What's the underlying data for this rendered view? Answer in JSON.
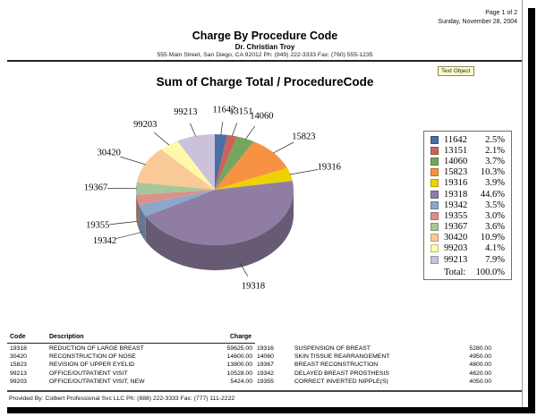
{
  "header": {
    "page_number": "Page 1 of 2",
    "date": "Sunday, November 28, 2004",
    "report_title": "Charge By Procedure Code",
    "provider_name": "Dr. Christian Troy",
    "address": "555 Main Street, San Diego, CA 92012 Ph: (949) 222-3333 Fax: (760) 555-1235"
  },
  "chart": {
    "text_object_label": "Text Object",
    "text_object_bg": "#FFFFCC"
  },
  "chart_data": {
    "type": "pie",
    "style": "3d",
    "title": "Sum of Charge Total / ProcedureCode",
    "start_angle_deg": -90,
    "clockwise": true,
    "legend_position": "right",
    "categories": [
      "11642",
      "13151",
      "14060",
      "15823",
      "19316",
      "19318",
      "19342",
      "19355",
      "19367",
      "30420",
      "99203",
      "99213"
    ],
    "values_percent": [
      2.5,
      2.1,
      3.7,
      10.3,
      3.9,
      44.6,
      3.5,
      3.0,
      3.6,
      10.9,
      4.1,
      7.9
    ],
    "colors": [
      "#4A6FA5",
      "#C9645C",
      "#74A65F",
      "#F79242",
      "#EDD202",
      "#8F7DA3",
      "#8CA7CC",
      "#DB9189",
      "#A6C79A",
      "#FAC998",
      "#FEF9A9",
      "#CBC1DB"
    ],
    "legend": {
      "total_label": "Total:",
      "total_value": "100.0%"
    }
  },
  "table": {
    "headers": [
      "Code",
      "Description",
      "Charge"
    ],
    "left_rows": [
      [
        "19318",
        "REDUCTION OF LARGE BREAST",
        "59625.00"
      ],
      [
        "30420",
        "RECONSTRUCTION OF NOSE",
        "14600.00"
      ],
      [
        "15823",
        "REVISION OF UPPER EYELID",
        "13800.00"
      ],
      [
        "99213",
        "OFFICE/OUTPATIENT VISIT",
        "10528.00"
      ],
      [
        "99203",
        "OFFICE/OUTPATIENT VISIT, NEW",
        "5424.00"
      ]
    ],
    "right_rows": [
      [
        "19316",
        "SUSPENSION OF BREAST",
        "5280.00"
      ],
      [
        "14060",
        "SKIN TISSUE REARRANGEMENT",
        "4950.00"
      ],
      [
        "19367",
        "BREAST RECONSTRUCTION",
        "4800.00"
      ],
      [
        "19342",
        "DELAYED BREAST PROSTHESIS",
        "4620.00"
      ],
      [
        "19355",
        "CORRECT INVERTED NIPPLE(S)",
        "4050.00"
      ]
    ]
  },
  "footer": {
    "provided_by": "Provided By: Colbert Professional Svc LLC Ph: (888) 222-3333 Fax: (777) 111-2222"
  }
}
